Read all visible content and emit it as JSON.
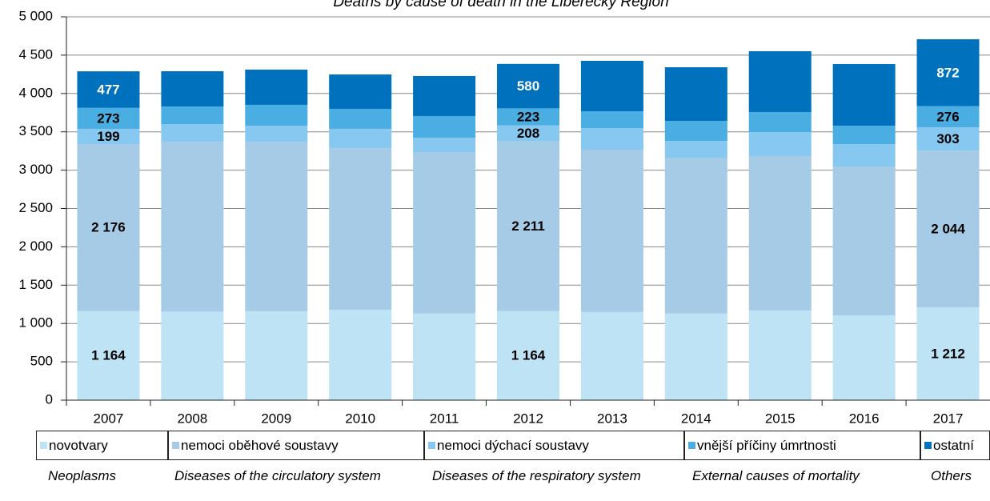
{
  "chart_data": {
    "type": "stacked_bar",
    "title": "Deaths by cause of death in the Liberecký Region",
    "categories": [
      "2007",
      "2008",
      "2009",
      "2010",
      "2011",
      "2012",
      "2013",
      "2014",
      "2015",
      "2016",
      "2017"
    ],
    "series": [
      {
        "name": "novotvary",
        "name_en": "Neoplasms",
        "color": "#bde3f5",
        "values": [
          1164,
          1155,
          1160,
          1180,
          1130,
          1164,
          1150,
          1130,
          1170,
          1106,
          1212
        ],
        "value_labels": [
          "1 164",
          null,
          null,
          null,
          null,
          "1 164",
          null,
          null,
          null,
          null,
          "1 212"
        ]
      },
      {
        "name": "nemoci oběhové soustavy",
        "name_en": "Diseases of the circulatory system",
        "color": "#a6cbe6",
        "values": [
          2176,
          2217,
          2212,
          2108,
          2106,
          2211,
          2117,
          2033,
          2014,
          1942,
          2044
        ],
        "value_labels": [
          "2 176",
          null,
          null,
          null,
          null,
          "2 211",
          null,
          null,
          null,
          null,
          "2 044"
        ]
      },
      {
        "name": "nemoci dýchací soustavy",
        "name_en": "Diseases of the respiratory system",
        "color": "#86c8ef",
        "values": [
          199,
          229,
          208,
          251,
          188,
          208,
          282,
          219,
          313,
          292,
          303
        ],
        "value_labels": [
          "199",
          null,
          null,
          null,
          null,
          "208",
          null,
          null,
          null,
          null,
          "303"
        ]
      },
      {
        "name": "vnější příčiny úmrtnosti",
        "name_en": "External causes of mortality",
        "color": "#4aaee3",
        "values": [
          273,
          230,
          272,
          261,
          282,
          223,
          219,
          261,
          261,
          240,
          276
        ],
        "value_labels": [
          "273",
          null,
          null,
          null,
          null,
          "223",
          null,
          null,
          null,
          null,
          "276"
        ]
      },
      {
        "name": "ostatní",
        "name_en": "Others",
        "color": "#0072bd",
        "values": [
          477,
          459,
          459,
          448,
          522,
          580,
          658,
          699,
          793,
          804,
          872
        ],
        "value_labels": [
          "477",
          null,
          null,
          null,
          null,
          "580",
          null,
          null,
          null,
          null,
          "872"
        ]
      }
    ],
    "ylim": [
      0,
      5000
    ],
    "yticks": [
      0,
      500,
      {
        "value": 1000,
        "label": "1 000"
      },
      {
        "value": 1500,
        "label": "1 500"
      },
      {
        "value": 2000,
        "label": "2 000"
      },
      {
        "value": 2500,
        "label": "2 500"
      },
      {
        "value": 3000,
        "label": "3 000"
      },
      {
        "value": 3500,
        "label": "3 500"
      },
      {
        "value": 4000,
        "label": "4 000"
      },
      {
        "value": 4500,
        "label": "4 500"
      },
      {
        "value": 5000,
        "label": "5 000"
      }
    ],
    "grid": true,
    "legend": "bottom"
  }
}
